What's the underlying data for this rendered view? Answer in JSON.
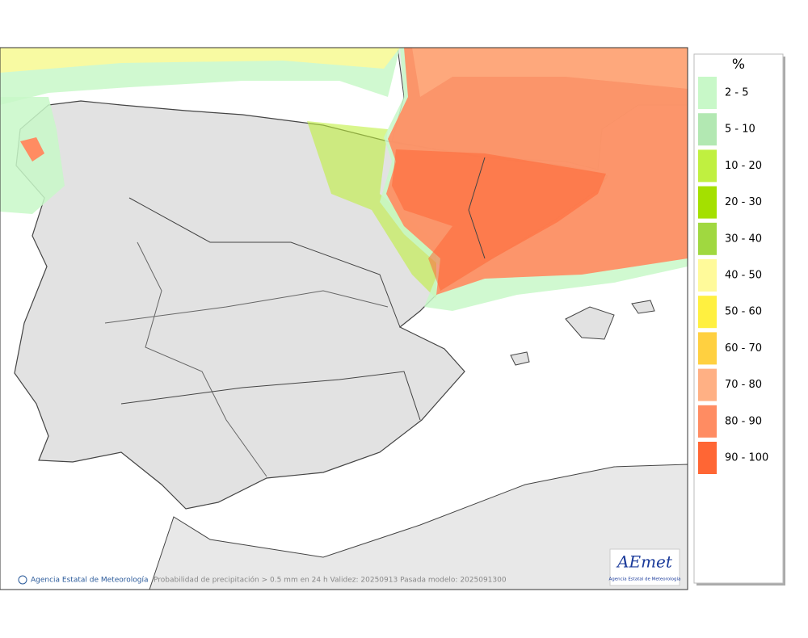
{
  "map": {
    "credit": "Agencia Estatal de Meteorología",
    "caption": "Probabilidad de precipitación > 0.5 mm en 24 h Validez: 20250913 Pasada modelo: 2025091300",
    "logo": {
      "name": "AEmet",
      "subtitle": "Agencia Estatal de Meteorología"
    }
  },
  "legend": {
    "title": "%",
    "items": [
      {
        "label": "2 - 5",
        "color": "#c8f8c8"
      },
      {
        "label": "5 - 10",
        "color": "#b2e8b2"
      },
      {
        "label": "10 - 20",
        "color": "#c0f040"
      },
      {
        "label": "20 - 30",
        "color": "#a4e000"
      },
      {
        "label": "30 - 40",
        "color": "#a0d840"
      },
      {
        "label": "40 - 50",
        "color": "#fffa9a"
      },
      {
        "label": "50 - 60",
        "color": "#fff040"
      },
      {
        "label": "60 - 70",
        "color": "#ffd040"
      },
      {
        "label": "70 - 80",
        "color": "#ffb084"
      },
      {
        "label": "80 - 90",
        "color": "#ff8c62"
      },
      {
        "label": "90 - 100",
        "color": "#ff6634"
      }
    ]
  }
}
